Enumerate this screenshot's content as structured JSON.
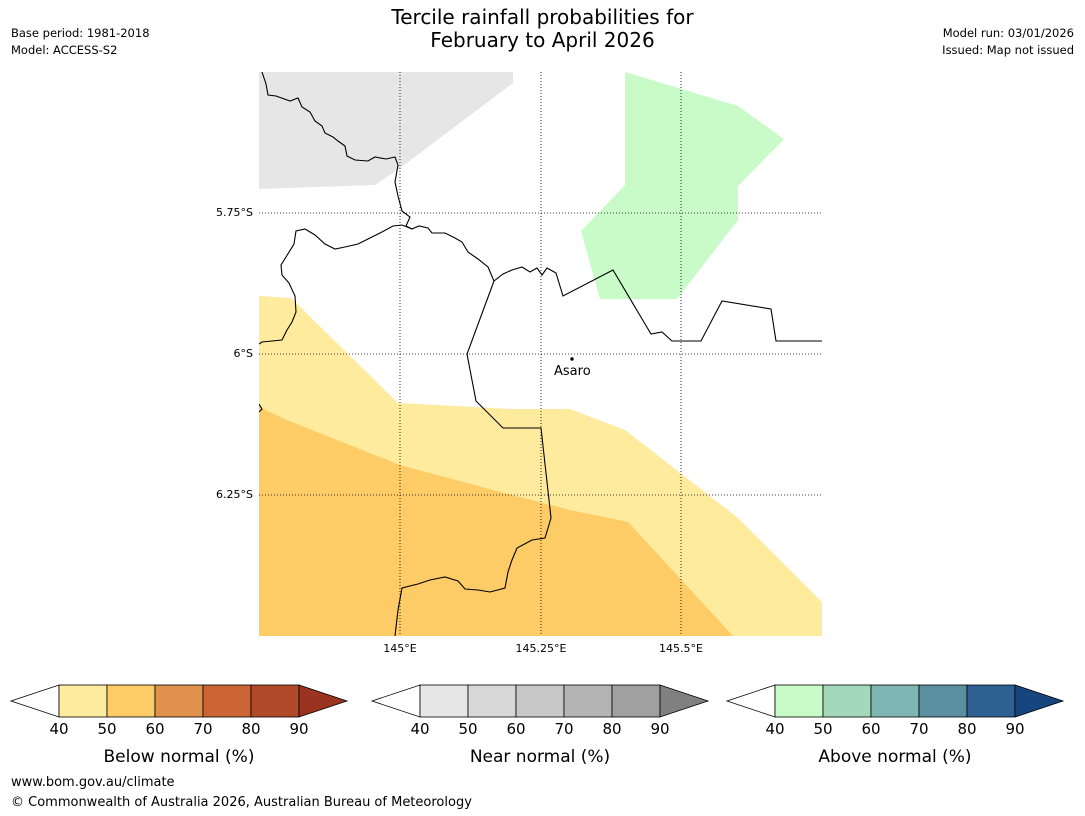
{
  "title_line1": "Tercile rainfall probabilities for",
  "title_line2": "February to April 2026",
  "meta_left": {
    "base_period": "Base period: 1981-2018",
    "model": "Model: ACCESS-S2"
  },
  "meta_right": {
    "model_run": "Model run: 03/01/2026",
    "issued": "Issued: Map not issued"
  },
  "map": {
    "latitude_labels": [
      "5.75°S",
      "6°S",
      "6.25°S"
    ],
    "longitude_labels": [
      "145°E",
      "145.25°E",
      "145.5°E"
    ],
    "place": {
      "name": "Asaro"
    },
    "region_colors": {
      "near_normal_40_50": "#e6e6e6",
      "above_normal_40_50": "#c9fbc9",
      "below_normal_40_50": "#ffeb9e",
      "below_normal_50_60": "#fecc66"
    }
  },
  "legends": [
    {
      "name": "below",
      "label": "Below normal (%)",
      "ticks": [
        "40",
        "50",
        "60",
        "70",
        "80",
        "90"
      ],
      "colors": [
        "#ffffff",
        "#ffeb9e",
        "#fecc66",
        "#e0914b",
        "#cc6433",
        "#b04a29",
        "#9a3421"
      ]
    },
    {
      "name": "near",
      "label": "Near normal (%)",
      "ticks": [
        "40",
        "50",
        "60",
        "70",
        "80",
        "90"
      ],
      "colors": [
        "#ffffff",
        "#e6e6e6",
        "#d8d8d8",
        "#c8c8c8",
        "#b4b4b4",
        "#a0a0a0",
        "#808080"
      ]
    },
    {
      "name": "above",
      "label": "Above normal (%)",
      "ticks": [
        "40",
        "50",
        "60",
        "70",
        "80",
        "90"
      ],
      "colors": [
        "#ffffff",
        "#c9fbc9",
        "#a3d9ba",
        "#7db6b2",
        "#5a8fa0",
        "#2e6094",
        "#17467e"
      ]
    }
  ],
  "footer": {
    "url": "www.bom.gov.au/climate",
    "copyright": "© Commonwealth of Australia 2026, Australian Bureau of Meteorology"
  }
}
